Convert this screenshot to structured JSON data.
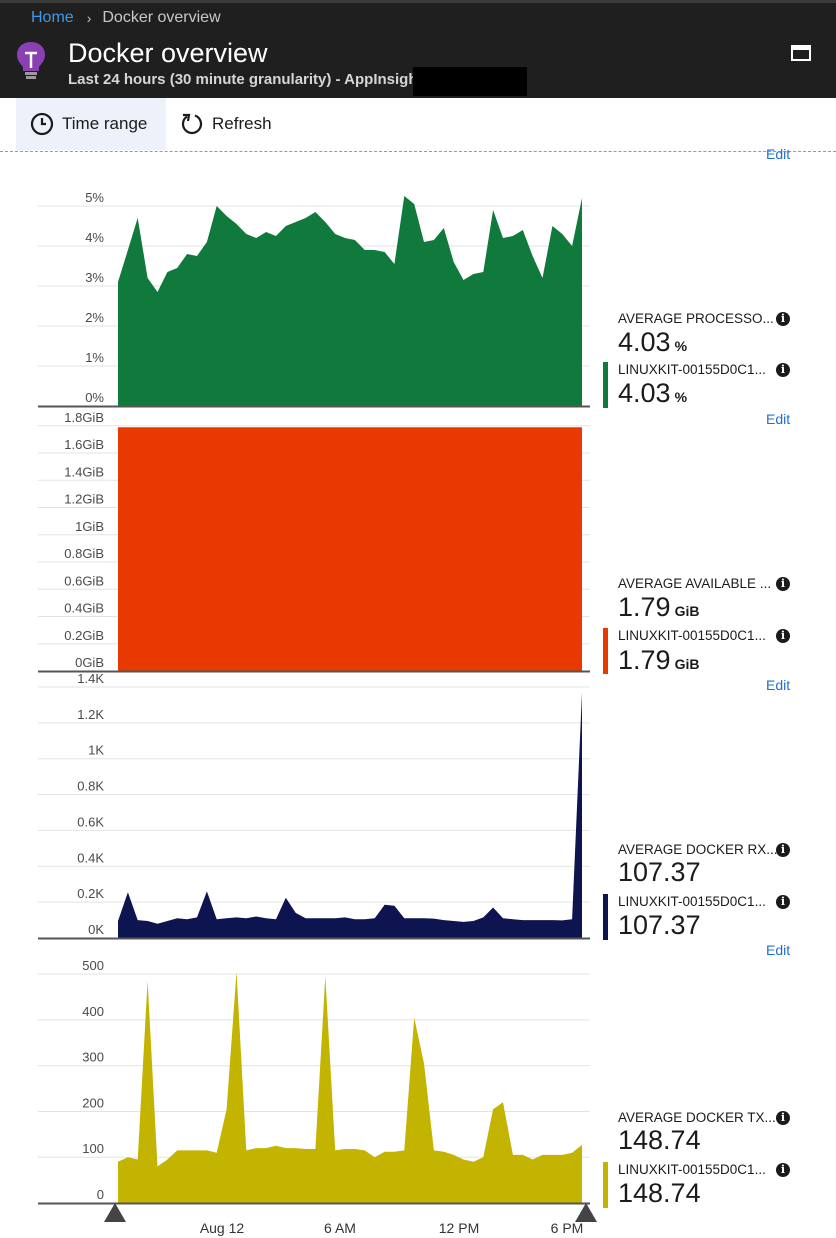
{
  "breadcrumb": {
    "home": "Home",
    "current": "Docker overview"
  },
  "header": {
    "title": "Docker overview",
    "subtitle": "Last 24 hours (30 minute granularity) - AppInsights",
    "icon": "lightbulb-icon",
    "maximize_icon": "maximize-icon"
  },
  "toolbar": {
    "time_range": "Time range",
    "refresh": "Refresh"
  },
  "edit_label": "Edit",
  "x_axis": {
    "labels": [
      "Aug 12",
      "6 AM",
      "12 PM",
      "6 PM"
    ]
  },
  "panels": [
    {
      "metric": "AVERAGE PROCESSO...",
      "metric_value": "4.03",
      "unit": "%",
      "series_name": "LINUXKIT-00155D0C1...",
      "series_value": "4.03",
      "series_unit": "%"
    },
    {
      "metric": "AVERAGE AVAILABLE ...",
      "metric_value": "1.79",
      "unit": "GiB",
      "series_name": "LINUXKIT-00155D0C1...",
      "series_value": "1.79",
      "series_unit": "GiB"
    },
    {
      "metric": "AVERAGE DOCKER RX...",
      "metric_value": "107.37",
      "unit": "",
      "series_name": "LINUXKIT-00155D0C1...",
      "series_value": "107.37",
      "series_unit": ""
    },
    {
      "metric": "AVERAGE DOCKER TX...",
      "metric_value": "148.74",
      "unit": "",
      "series_name": "LINUXKIT-00155D0C1...",
      "series_value": "148.74",
      "series_unit": ""
    }
  ],
  "chart_data": [
    {
      "type": "area",
      "color": "#0f7a3b",
      "ylim": [
        0,
        5.5
      ],
      "yticks": [
        0,
        1,
        2,
        3,
        4,
        5
      ],
      "ytick_labels": [
        "0%",
        "1%",
        "2%",
        "3%",
        "4%",
        "5%"
      ],
      "values": [
        3.1,
        3.9,
        4.7,
        3.2,
        2.85,
        3.35,
        3.45,
        3.8,
        3.75,
        4.1,
        5.0,
        4.75,
        4.55,
        4.3,
        4.2,
        4.35,
        4.25,
        4.5,
        4.6,
        4.7,
        4.85,
        4.6,
        4.3,
        4.2,
        4.15,
        3.9,
        3.9,
        3.85,
        3.55,
        5.25,
        5.05,
        4.1,
        4.15,
        4.45,
        3.6,
        3.15,
        3.3,
        3.35,
        4.9,
        4.2,
        4.25,
        4.4,
        3.75,
        3.2,
        4.5,
        4.3,
        4.0,
        5.2
      ]
    },
    {
      "type": "area",
      "color": "#e83a00",
      "ylim": [
        0,
        1.85
      ],
      "yticks": [
        0,
        0.2,
        0.4,
        0.6,
        0.8,
        1.0,
        1.2,
        1.4,
        1.6,
        1.8
      ],
      "ytick_labels": [
        "0GiB",
        "0.2GiB",
        "0.4GiB",
        "0.6GiB",
        "0.8GiB",
        "1GiB",
        "1.2GiB",
        "1.4GiB",
        "1.6GiB",
        "1.8GiB"
      ],
      "values": [
        1.79,
        1.79,
        1.79,
        1.79,
        1.79,
        1.79,
        1.79,
        1.79,
        1.79,
        1.79,
        1.79,
        1.79,
        1.79,
        1.79,
        1.79,
        1.79,
        1.79,
        1.79,
        1.79,
        1.79,
        1.79,
        1.79,
        1.79,
        1.79,
        1.79,
        1.79,
        1.79,
        1.79,
        1.79,
        1.79,
        1.79,
        1.79,
        1.79,
        1.79,
        1.79,
        1.79,
        1.79,
        1.79,
        1.79,
        1.79,
        1.79,
        1.79,
        1.79,
        1.79,
        1.79,
        1.79,
        1.79,
        1.79
      ]
    },
    {
      "type": "area",
      "color": "#0d1450",
      "ylim": [
        0,
        1400
      ],
      "yticks": [
        0,
        200,
        400,
        600,
        800,
        1000,
        1200,
        1400
      ],
      "ytick_labels": [
        "0K",
        "0.2K",
        "0.4K",
        "0.6K",
        "0.8K",
        "1K",
        "1.2K",
        "1.4K"
      ],
      "values": [
        95,
        255,
        100,
        95,
        80,
        95,
        110,
        105,
        115,
        260,
        105,
        110,
        115,
        110,
        120,
        110,
        105,
        225,
        140,
        110,
        110,
        110,
        110,
        115,
        105,
        105,
        110,
        185,
        180,
        110,
        110,
        110,
        108,
        100,
        95,
        90,
        95,
        115,
        170,
        110,
        105,
        100,
        100,
        100,
        100,
        98,
        105,
        1370
      ]
    },
    {
      "type": "area",
      "color": "#c2b400",
      "ylim": [
        0,
        520
      ],
      "yticks": [
        0,
        100,
        200,
        300,
        400,
        500
      ],
      "ytick_labels": [
        "0",
        "100",
        "200",
        "300",
        "400",
        "500"
      ],
      "values": [
        90,
        100,
        95,
        485,
        80,
        95,
        115,
        115,
        115,
        115,
        110,
        205,
        505,
        115,
        120,
        120,
        125,
        120,
        120,
        118,
        118,
        495,
        115,
        118,
        118,
        115,
        100,
        112,
        112,
        115,
        405,
        305,
        115,
        112,
        105,
        95,
        90,
        100,
        205,
        220,
        105,
        105,
        95,
        105,
        105,
        105,
        110,
        127
      ]
    }
  ]
}
